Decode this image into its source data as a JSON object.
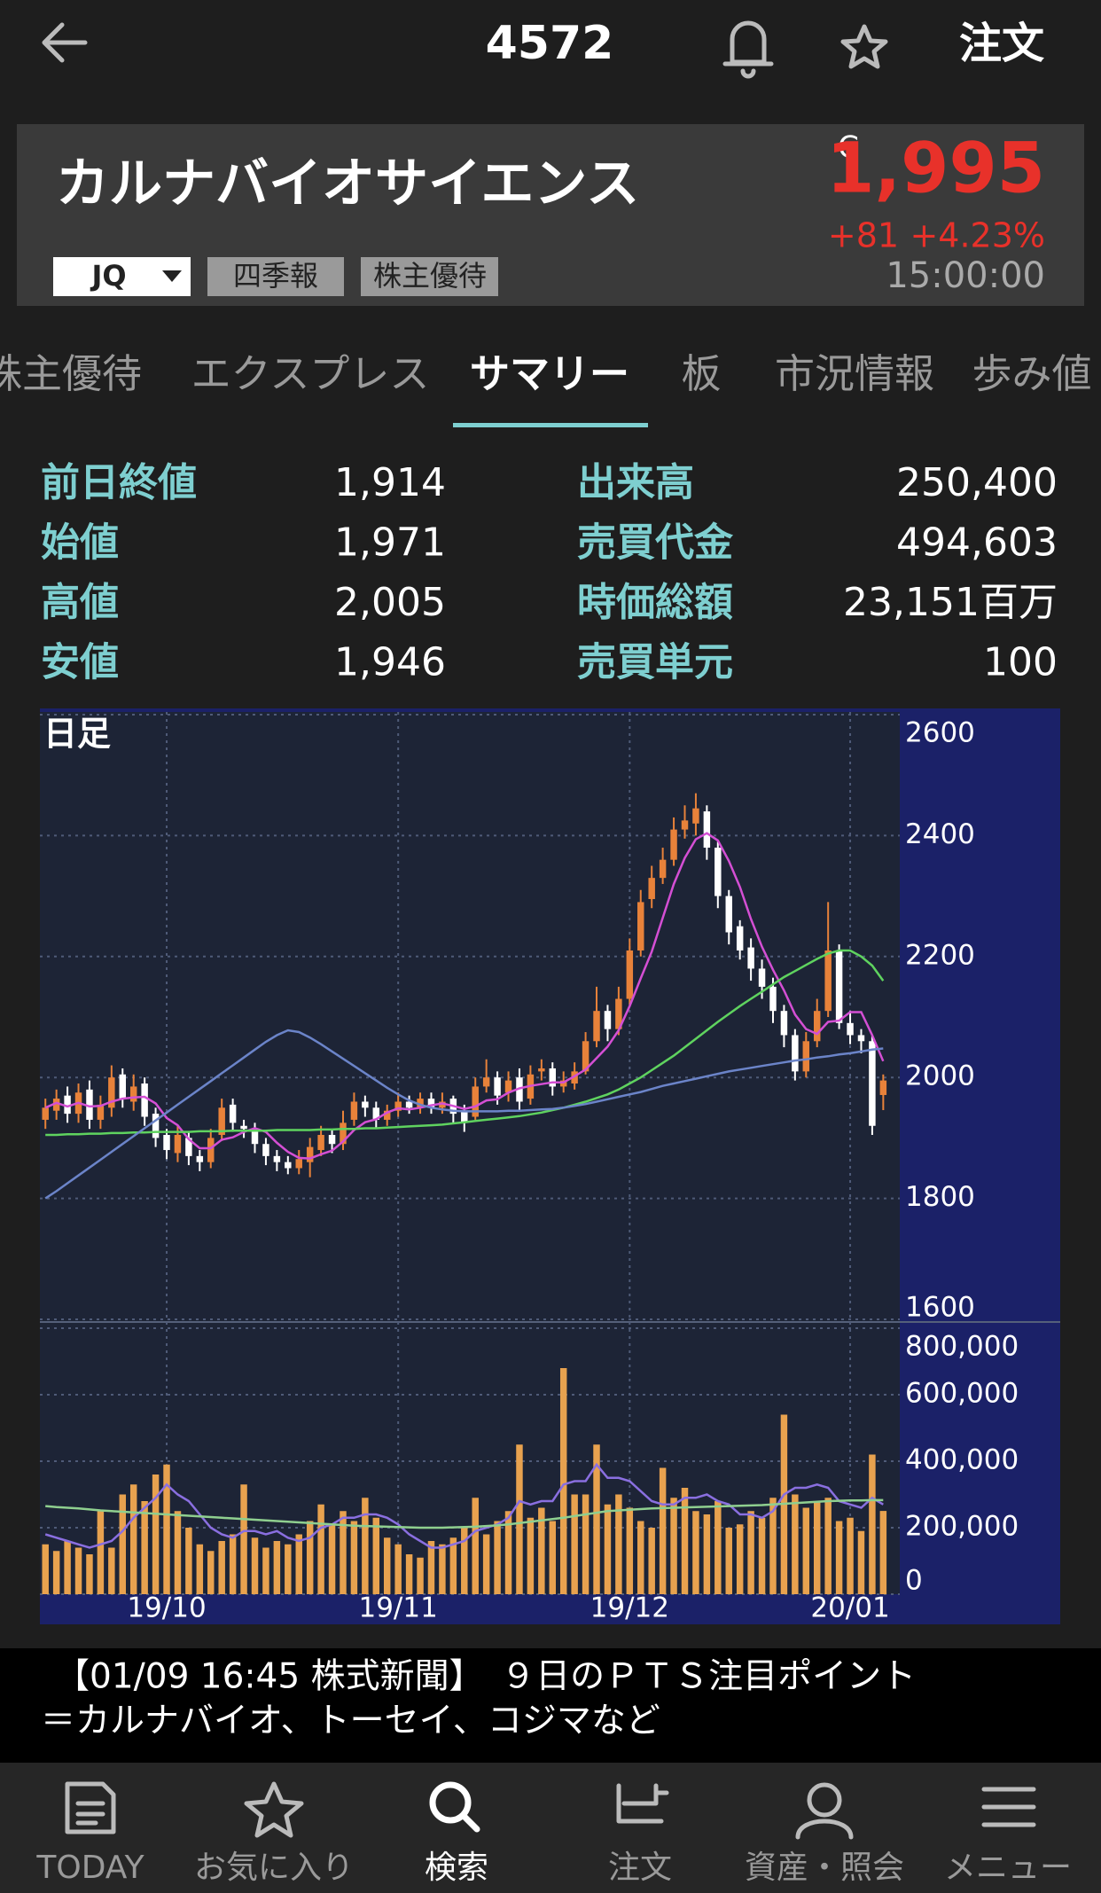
{
  "header": {
    "title": "4572",
    "order": "注文"
  },
  "stock": {
    "name": "カルナバイオサイエンス",
    "close_mark": "C",
    "price": "1,995",
    "change": "+81",
    "change_pct": "+4.23%",
    "time": "15:00:00",
    "badges": [
      "JQ",
      "四季報",
      "株主優待"
    ]
  },
  "tabs": {
    "items": [
      "株主優待",
      "エクスプレス",
      "サマリー",
      "板",
      "市況情報",
      "歩み値"
    ],
    "active": 2
  },
  "summary": {
    "rows": [
      [
        "前日終値",
        "1,914",
        "出来高",
        "250,400"
      ],
      [
        "始値",
        "1,971",
        "売買代金",
        "494,603"
      ],
      [
        "高値",
        "2,005",
        "時価総額",
        "23,151百万"
      ],
      [
        "安値",
        "1,946",
        "売買単元",
        "100"
      ]
    ]
  },
  "chart_data": {
    "type": "candlestick",
    "title": "日足",
    "grid": true,
    "up_color": "#e8823a",
    "down_color": "#ffffff",
    "categories": [
      null,
      null,
      null,
      null,
      null,
      null,
      null,
      null,
      null,
      null,
      null,
      "19/10",
      null,
      null,
      null,
      null,
      null,
      null,
      null,
      null,
      null,
      null,
      null,
      null,
      null,
      null,
      null,
      null,
      null,
      null,
      null,
      null,
      "19/11",
      null,
      null,
      null,
      null,
      null,
      null,
      null,
      null,
      null,
      null,
      null,
      null,
      null,
      null,
      null,
      null,
      null,
      null,
      null,
      null,
      "19/12",
      null,
      null,
      null,
      null,
      null,
      null,
      null,
      null,
      null,
      null,
      null,
      null,
      null,
      null,
      null,
      null,
      null,
      null,
      null,
      "20/01",
      null,
      null,
      null,
      null
    ],
    "ohlc": [
      [
        1930,
        1965,
        1915,
        1950
      ],
      [
        1945,
        1980,
        1930,
        1965
      ],
      [
        1970,
        1985,
        1925,
        1940
      ],
      [
        1940,
        1990,
        1925,
        1975
      ],
      [
        1980,
        1995,
        1915,
        1930
      ],
      [
        1930,
        1970,
        1915,
        1955
      ],
      [
        1950,
        2020,
        1935,
        2000
      ],
      [
        2005,
        2015,
        1950,
        1965
      ],
      [
        1960,
        2005,
        1945,
        1985
      ],
      [
        1990,
        2000,
        1920,
        1935
      ],
      [
        1940,
        1950,
        1885,
        1900
      ],
      [
        1905,
        1915,
        1865,
        1880
      ],
      [
        1875,
        1920,
        1860,
        1905
      ],
      [
        1900,
        1910,
        1855,
        1870
      ],
      [
        1870,
        1880,
        1845,
        1860
      ],
      [
        1860,
        1915,
        1850,
        1900
      ],
      [
        1905,
        1965,
        1895,
        1950
      ],
      [
        1955,
        1965,
        1910,
        1925
      ],
      [
        1920,
        1930,
        1900,
        1915
      ],
      [
        1915,
        1925,
        1875,
        1890
      ],
      [
        1890,
        1900,
        1855,
        1870
      ],
      [
        1870,
        1880,
        1845,
        1860
      ],
      [
        1860,
        1870,
        1840,
        1850
      ],
      [
        1850,
        1880,
        1840,
        1865
      ],
      [
        1860,
        1900,
        1835,
        1885
      ],
      [
        1880,
        1920,
        1870,
        1905
      ],
      [
        1905,
        1915,
        1875,
        1890
      ],
      [
        1890,
        1945,
        1880,
        1925
      ],
      [
        1930,
        1975,
        1920,
        1960
      ],
      [
        1960,
        1970,
        1935,
        1950
      ],
      [
        1950,
        1960,
        1915,
        1930
      ],
      [
        1930,
        1955,
        1920,
        1945
      ],
      [
        1945,
        1975,
        1935,
        1960
      ],
      [
        1960,
        1970,
        1940,
        1950
      ],
      [
        1950,
        1975,
        1940,
        1965
      ],
      [
        1965,
        1975,
        1940,
        1950
      ],
      [
        1950,
        1975,
        1940,
        1960
      ],
      [
        1965,
        1970,
        1925,
        1940
      ],
      [
        1945,
        1955,
        1910,
        1925
      ],
      [
        1935,
        2000,
        1930,
        1985
      ],
      [
        1985,
        2030,
        1975,
        2000
      ],
      [
        2000,
        2010,
        1955,
        1970
      ],
      [
        1975,
        2010,
        1960,
        1995
      ],
      [
        2000,
        2015,
        1945,
        1960
      ],
      [
        1965,
        2020,
        1955,
        2005
      ],
      [
        2010,
        2030,
        1995,
        2015
      ],
      [
        2015,
        2025,
        1970,
        1985
      ],
      [
        1985,
        2010,
        1975,
        1995
      ],
      [
        1990,
        2025,
        1980,
        2010
      ],
      [
        2010,
        2075,
        2005,
        2060
      ],
      [
        2060,
        2150,
        2050,
        2110
      ],
      [
        2110,
        2120,
        2060,
        2080
      ],
      [
        2080,
        2150,
        2070,
        2130
      ],
      [
        2130,
        2230,
        2120,
        2210
      ],
      [
        2210,
        2310,
        2200,
        2290
      ],
      [
        2295,
        2350,
        2280,
        2330
      ],
      [
        2330,
        2380,
        2320,
        2360
      ],
      [
        2360,
        2430,
        2350,
        2410
      ],
      [
        2410,
        2450,
        2395,
        2425
      ],
      [
        2420,
        2470,
        2400,
        2445
      ],
      [
        2440,
        2450,
        2360,
        2380
      ],
      [
        2380,
        2390,
        2280,
        2300
      ],
      [
        2300,
        2310,
        2220,
        2240
      ],
      [
        2250,
        2260,
        2195,
        2210
      ],
      [
        2215,
        2230,
        2160,
        2180
      ],
      [
        2180,
        2195,
        2130,
        2150
      ],
      [
        2150,
        2165,
        2090,
        2110
      ],
      [
        2110,
        2120,
        2050,
        2070
      ],
      [
        2070,
        2080,
        1995,
        2010
      ],
      [
        2010,
        2075,
        2000,
        2060
      ],
      [
        2060,
        2130,
        2050,
        2110
      ],
      [
        2110,
        2290,
        2100,
        2210
      ],
      [
        2210,
        2220,
        2080,
        2090
      ],
      [
        2090,
        2110,
        2055,
        2070
      ],
      [
        2070,
        2080,
        2040,
        2060
      ],
      [
        2060,
        2070,
        1905,
        1920
      ],
      [
        1971,
        2005,
        1946,
        1995
      ]
    ],
    "lines": [
      {
        "color": "#d44fd4",
        "values": [
          1950,
          1958,
          1952,
          1958,
          1952,
          1953,
          1960,
          1965,
          1967,
          1968,
          1957,
          1933,
          1921,
          1898,
          1883,
          1883,
          1897,
          1901,
          1910,
          1916,
          1910,
          1892,
          1877,
          1867,
          1866,
          1873,
          1879,
          1894,
          1913,
          1926,
          1931,
          1942,
          1949,
          1947,
          1950,
          1954,
          1957,
          1953,
          1948,
          1952,
          1962,
          1964,
          1975,
          1982,
          1986,
          1989,
          1992,
          1992,
          2002,
          2013,
          2032,
          2051,
          2078,
          2118,
          2164,
          2208,
          2264,
          2320,
          2363,
          2394,
          2404,
          2392,
          2358,
          2315,
          2262,
          2216,
          2178,
          2144,
          2104,
          2080,
          2072,
          2092,
          2094,
          2108,
          2108,
          2070,
          2027
        ]
      },
      {
        "color": "#5fd35f",
        "values": [
          1905,
          1905,
          1906,
          1906,
          1907,
          1907,
          1908,
          1908,
          1909,
          1909,
          1910,
          1910,
          1910,
          1910,
          1911,
          1911,
          1911,
          1912,
          1912,
          1912,
          1912,
          1913,
          1913,
          1913,
          1913,
          1914,
          1914,
          1915,
          1915,
          1916,
          1916,
          1917,
          1918,
          1919,
          1920,
          1921,
          1922,
          1924,
          1926,
          1928,
          1930,
          1932,
          1934,
          1936,
          1939,
          1942,
          1946,
          1950,
          1955,
          1960,
          1966,
          1972,
          1980,
          1990,
          2000,
          2012,
          2024,
          2036,
          2050,
          2064,
          2078,
          2092,
          2105,
          2118,
          2130,
          2142,
          2154,
          2166,
          2176,
          2186,
          2196,
          2205,
          2210,
          2210,
          2200,
          2185,
          2160
        ]
      },
      {
        "color": "#6b84c9",
        "values": [
          1800,
          1812,
          1825,
          1838,
          1851,
          1864,
          1877,
          1890,
          1903,
          1916,
          1929,
          1942,
          1955,
          1968,
          1981,
          1994,
          2007,
          2020,
          2033,
          2046,
          2059,
          2070,
          2078,
          2075,
          2066,
          2055,
          2043,
          2031,
          2019,
          2007,
          1995,
          1983,
          1972,
          1962,
          1955,
          1950,
          1947,
          1945,
          1944,
          1944,
          1944,
          1944,
          1945,
          1945,
          1946,
          1947,
          1948,
          1950,
          1953,
          1956,
          1960,
          1964,
          1968,
          1972,
          1976,
          1981,
          1986,
          1990,
          1994,
          1998,
          2002,
          2006,
          2010,
          2013,
          2016,
          2019,
          2022,
          2025,
          2028,
          2030,
          2033,
          2035,
          2038,
          2040,
          2043,
          2046,
          2048
        ]
      }
    ],
    "ylim": [
      1600,
      2600
    ],
    "yticks": [
      1600,
      1800,
      2000,
      2200,
      2400,
      2600
    ],
    "volume": {
      "color": "#e8a24f",
      "values": [
        150000,
        130000,
        160000,
        140000,
        120000,
        250000,
        140000,
        300000,
        330000,
        280000,
        360000,
        390000,
        250000,
        200000,
        150000,
        130000,
        160000,
        180000,
        330000,
        170000,
        140000,
        160000,
        150000,
        180000,
        220000,
        270000,
        210000,
        250000,
        220000,
        290000,
        230000,
        170000,
        150000,
        120000,
        110000,
        160000,
        150000,
        170000,
        200000,
        290000,
        180000,
        220000,
        250000,
        450000,
        230000,
        260000,
        220000,
        680000,
        300000,
        300000,
        450000,
        270000,
        300000,
        260000,
        220000,
        200000,
        380000,
        290000,
        320000,
        250000,
        240000,
        280000,
        200000,
        210000,
        250000,
        230000,
        290000,
        540000,
        300000,
        260000,
        280000,
        290000,
        220000,
        230000,
        190000,
        420000,
        250400
      ],
      "lines": [
        {
          "color": "#8a6fe0",
          "values": [
            180000,
            170000,
            160000,
            150000,
            140000,
            150000,
            160000,
            190000,
            230000,
            260000,
            290000,
            330000,
            300000,
            280000,
            240000,
            200000,
            180000,
            170000,
            190000,
            190000,
            180000,
            190000,
            170000,
            160000,
            170000,
            200000,
            210000,
            230000,
            230000,
            240000,
            240000,
            230000,
            210000,
            180000,
            160000,
            140000,
            140000,
            150000,
            160000,
            190000,
            200000,
            210000,
            230000,
            280000,
            270000,
            280000,
            280000,
            330000,
            340000,
            340000,
            390000,
            350000,
            350000,
            340000,
            310000,
            280000,
            270000,
            270000,
            290000,
            290000,
            300000,
            280000,
            270000,
            240000,
            240000,
            230000,
            250000,
            300000,
            320000,
            320000,
            330000,
            320000,
            280000,
            270000,
            260000,
            290000,
            270000
          ]
        },
        {
          "color": "#8fcf8f",
          "values": [
            265000,
            262000,
            260000,
            258000,
            255000,
            252000,
            250000,
            248000,
            246000,
            244000,
            242000,
            240000,
            238000,
            236000,
            234000,
            232000,
            230000,
            228000,
            226000,
            224000,
            222000,
            220000,
            218000,
            216000,
            214000,
            212000,
            210000,
            208000,
            206000,
            205000,
            204000,
            203000,
            202000,
            201000,
            200000,
            200000,
            200000,
            201000,
            202000,
            203000,
            205000,
            207000,
            210000,
            214000,
            218000,
            222000,
            226000,
            230000,
            235000,
            240000,
            245000,
            250000,
            252000,
            254000,
            256000,
            258000,
            259000,
            260000,
            261000,
            262000,
            263000,
            264000,
            265000,
            266000,
            267000,
            268000,
            270000,
            272000,
            274000,
            276000,
            278000,
            280000,
            281000,
            282000,
            282000,
            283000,
            283000
          ]
        }
      ],
      "ylim": [
        0,
        800000
      ],
      "yticks": [
        0,
        {
          "value": 200000,
          "label": "200,000"
        },
        {
          "value": 400000,
          "label": "400,000"
        },
        {
          "value": 600000,
          "label": "600,000"
        },
        {
          "value": 800000,
          "label": "800,000"
        }
      ]
    }
  },
  "news": {
    "lines": [
      "【01/09 16:45 株式新聞】　９日のＰＴＳ注目ポイント",
      "＝カルナバイオ、トーセイ、コジマなど"
    ]
  },
  "nav": {
    "items": [
      "TODAY",
      "お気に入り",
      "検索",
      "注文",
      "資産・照会",
      "メニュー"
    ],
    "active": 2
  }
}
